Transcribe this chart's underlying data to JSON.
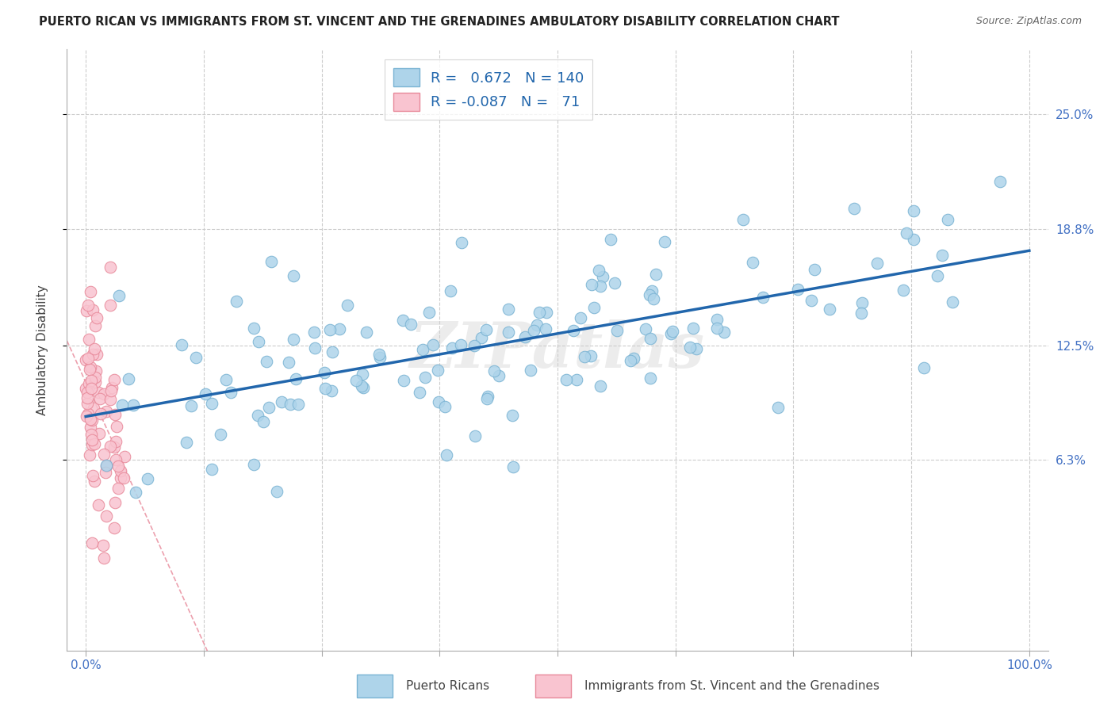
{
  "title": "PUERTO RICAN VS IMMIGRANTS FROM ST. VINCENT AND THE GRENADINES AMBULATORY DISABILITY CORRELATION CHART",
  "source": "Source: ZipAtlas.com",
  "ylabel": "Ambulatory Disability",
  "y_tick_labels": [
    "6.3%",
    "12.5%",
    "18.8%",
    "25.0%"
  ],
  "y_tick_values": [
    0.063,
    0.125,
    0.188,
    0.25
  ],
  "x_tick_values": [
    0.0,
    0.125,
    0.25,
    0.375,
    0.5,
    0.625,
    0.75,
    0.875,
    1.0
  ],
  "legend_blue_r": "0.672",
  "legend_blue_n": "140",
  "legend_pink_r": "-0.087",
  "legend_pink_n": "71",
  "blue_fill_color": "#aed4ea",
  "blue_edge_color": "#7ab3d3",
  "pink_fill_color": "#f9c4d0",
  "pink_edge_color": "#e8899a",
  "regression_blue_color": "#2166ac",
  "regression_pink_color": "#e8899a",
  "watermark": "ZIPatlas",
  "blue_seed": 42,
  "pink_seed": 7,
  "blue_N": 140,
  "pink_N": 71,
  "blue_R": 0.672,
  "pink_R": -0.087,
  "xlim": [
    -0.02,
    1.02
  ],
  "ylim": [
    -0.04,
    0.285
  ],
  "figsize": [
    14.06,
    8.92
  ],
  "dpi": 100
}
